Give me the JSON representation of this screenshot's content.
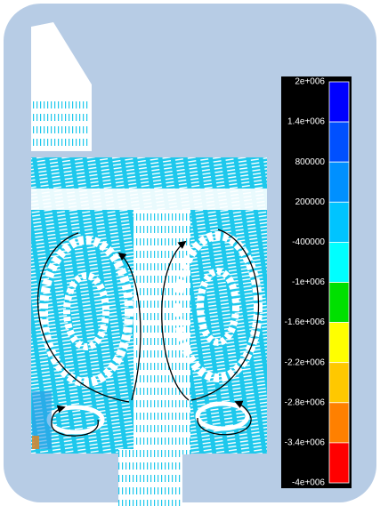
{
  "colorbar": {
    "labels": [
      "2e+006",
      "1.4e+006",
      "800000",
      "200000",
      "-400000",
      "-1e+006",
      "-1.6e+006",
      "-2.2e+006",
      "-2.8e+006",
      "-3.4e+006",
      "-4e+006"
    ],
    "colors": [
      "#0000ff",
      "#0050ff",
      "#0090ff",
      "#00c4ff",
      "#00ffff",
      "#00e000",
      "#ffff00",
      "#ffc800",
      "#ff8000",
      "#ff0000"
    ]
  }
}
